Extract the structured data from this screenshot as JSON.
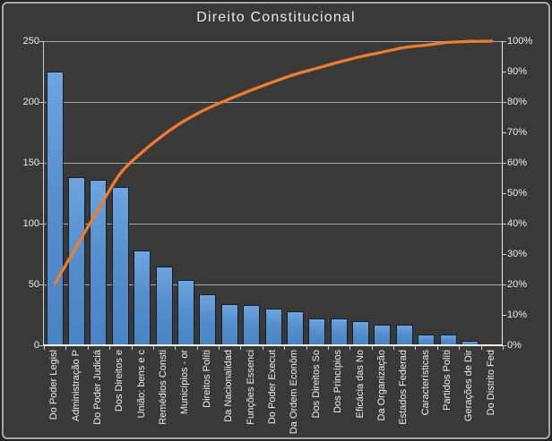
{
  "colors": {
    "background": "#3b3838",
    "bar_fill_top": "#6fa4de",
    "bar_fill_bottom": "#4a83c3",
    "bar_border": "#101f33",
    "line": "#ed7d31",
    "gridline": "#a8a8a8",
    "axis_text": "#ececec",
    "title_text": "#e8e8e8",
    "chart_border": "#a6a6a6"
  },
  "chart_data": {
    "type": "bar",
    "subtype": "pareto (bar + cumulative line)",
    "title": "Direito Constitucional",
    "categories": [
      "Do Poder Legisl",
      "Administração P",
      "Do Poder Judiciá",
      "Dos Direitos e",
      "União: bens e c",
      "Remédios Consti",
      "Municípios - or",
      "Direitos Políti",
      "Da Nacionalidad",
      "Funções Essenci",
      "Do Poder Execut",
      "Da Ordem Econôm",
      "Dos Direitos So",
      "Dos Princípios",
      "Eficácia das No",
      "Da Organização",
      "Estados Federad",
      "Características",
      "Partidos Políti",
      "Gerações de Dir",
      "Do Distrito Fed"
    ],
    "series": [
      {
        "name": "bars",
        "type": "bar",
        "values": [
          225,
          138,
          136,
          130,
          78,
          65,
          54,
          42,
          34,
          33,
          30,
          28,
          22,
          22,
          20,
          17,
          17,
          9,
          9,
          4,
          1
        ]
      },
      {
        "name": "cumulative_line",
        "type": "line",
        "values_pct": [
          20.2,
          32.6,
          44.8,
          56.5,
          63.5,
          69.3,
          74.1,
          77.9,
          81.0,
          83.9,
          86.6,
          89.1,
          91.1,
          93.1,
          94.9,
          96.4,
          97.9,
          98.7,
          99.6,
          99.9,
          100.0
        ]
      }
    ],
    "left_axis": {
      "range": [
        0,
        250
      ],
      "tick_labels": [
        "250",
        "200",
        "150",
        "100",
        "50",
        "0"
      ]
    },
    "right_axis": {
      "range_pct": [
        0,
        100
      ],
      "tick_labels": [
        "100%",
        "90%",
        "80%",
        "70%",
        "60%",
        "50%",
        "40%",
        "30%",
        "20%",
        "10%",
        "0%"
      ]
    },
    "grid": "horizontal gridlines every 50 units (every 20%)",
    "legend": "none"
  }
}
